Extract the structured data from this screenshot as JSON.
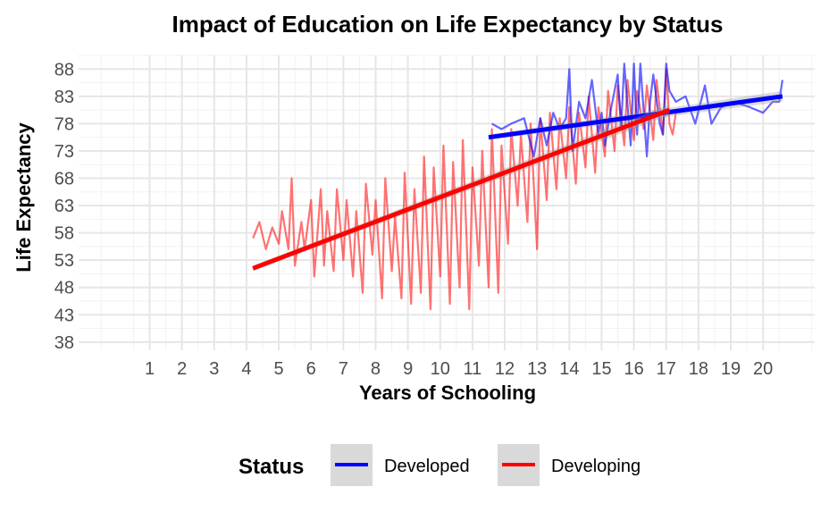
{
  "chart_data": {
    "type": "line",
    "title": "Impact of Education on Life Expectancy by Status",
    "xlabel": "Years of Schooling",
    "ylabel": "Life Expectancy",
    "xlim": [
      -1.2,
      21.6
    ],
    "ylim": [
      36.5,
      90.5
    ],
    "x_ticks": [
      1,
      2,
      3,
      4,
      5,
      6,
      7,
      8,
      9,
      10,
      11,
      12,
      13,
      14,
      15,
      16,
      17,
      18,
      19,
      20
    ],
    "y_ticks": [
      38,
      43,
      48,
      53,
      58,
      63,
      68,
      73,
      78,
      83,
      88
    ],
    "grid": true,
    "legend": {
      "title": "Status",
      "position": "bottom",
      "entries": [
        {
          "label": "Developed",
          "color": "#0000ff"
        },
        {
          "label": "Developing",
          "color": "#ff0000"
        }
      ]
    },
    "series": [
      {
        "name": "Developed",
        "color": "#0000ff",
        "trend": {
          "x": [
            11.5,
            20.6
          ],
          "y": [
            75.5,
            83.0
          ]
        },
        "x": [
          11.6,
          11.9,
          12.2,
          12.6,
          12.9,
          13.1,
          13.3,
          13.5,
          13.7,
          13.9,
          14.0,
          14.1,
          14.3,
          14.5,
          14.7,
          14.9,
          15.0,
          15.1,
          15.3,
          15.5,
          15.6,
          15.7,
          15.9,
          16.0,
          16.1,
          16.2,
          16.4,
          16.5,
          16.6,
          16.8,
          16.9,
          17.0,
          17.1,
          17.3,
          17.6,
          17.9,
          18.2,
          18.4,
          18.7,
          19.1,
          19.6,
          20.0,
          20.3,
          20.5,
          20.6
        ],
        "y": [
          78,
          77,
          78,
          79,
          72,
          79,
          74,
          80,
          77,
          79,
          88,
          73,
          82,
          79,
          86,
          76,
          80,
          74,
          81,
          87,
          77,
          89,
          74,
          89,
          76,
          89,
          72,
          82,
          87,
          78,
          76,
          89,
          84,
          82,
          83,
          78,
          85,
          78,
          81,
          82,
          81,
          80,
          82,
          82,
          86
        ]
      },
      {
        "name": "Developing",
        "color": "#ff0000",
        "trend": {
          "x": [
            4.2,
            17.1
          ],
          "y": [
            51.5,
            80.5
          ]
        },
        "x": [
          4.2,
          4.4,
          4.6,
          4.8,
          5.0,
          5.1,
          5.3,
          5.4,
          5.5,
          5.7,
          5.8,
          6.0,
          6.1,
          6.3,
          6.4,
          6.5,
          6.7,
          6.8,
          7.0,
          7.1,
          7.3,
          7.4,
          7.6,
          7.7,
          7.9,
          8.0,
          8.2,
          8.3,
          8.5,
          8.6,
          8.8,
          8.9,
          9.1,
          9.2,
          9.4,
          9.5,
          9.7,
          9.8,
          10.0,
          10.1,
          10.3,
          10.4,
          10.6,
          10.7,
          10.9,
          11.0,
          11.2,
          11.3,
          11.5,
          11.6,
          11.8,
          11.9,
          12.1,
          12.2,
          12.4,
          12.5,
          12.7,
          12.8,
          13.0,
          13.1,
          13.3,
          13.4,
          13.6,
          13.7,
          13.9,
          14.0,
          14.2,
          14.3,
          14.5,
          14.6,
          14.8,
          14.9,
          15.1,
          15.2,
          15.4,
          15.5,
          15.7,
          15.8,
          16.0,
          16.1,
          16.3,
          16.4,
          16.6,
          16.7,
          16.9,
          17.0,
          17.1,
          17.2,
          17.3
        ],
        "y": [
          57,
          60,
          55,
          59,
          56,
          62,
          55,
          68,
          52,
          60,
          55,
          64,
          50,
          66,
          52,
          62,
          51,
          66,
          53,
          64,
          50,
          62,
          47,
          67,
          54,
          64,
          46,
          68,
          51,
          61,
          46,
          69,
          45,
          66,
          47,
          72,
          44,
          70,
          50,
          74,
          45,
          71,
          48,
          75,
          44,
          70,
          52,
          73,
          48,
          77,
          47,
          74,
          56,
          77,
          63,
          76,
          60,
          78,
          55,
          79,
          64,
          80,
          66,
          79,
          68,
          81,
          67,
          80,
          70,
          83,
          69,
          81,
          72,
          84,
          73,
          85,
          74,
          86,
          75,
          84,
          77,
          85,
          75,
          86,
          76,
          88,
          78,
          76,
          80
        ]
      }
    ]
  }
}
